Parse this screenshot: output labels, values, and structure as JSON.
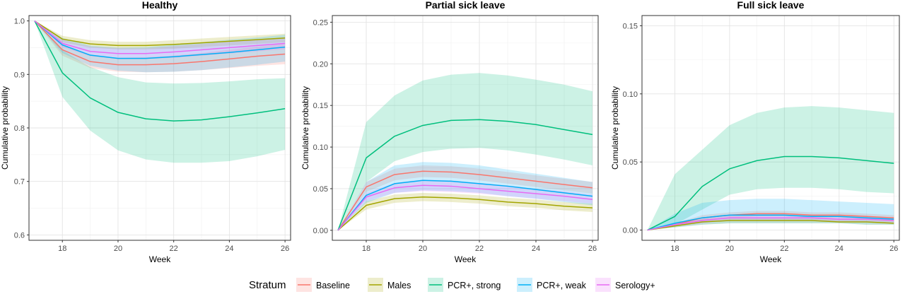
{
  "chart_data": {
    "type": "line",
    "legend": {
      "title": "Stratum",
      "position": "bottom",
      "entries": [
        "Baseline",
        "Males",
        "PCR+, strong",
        "PCR+, weak",
        "Serology+"
      ]
    },
    "colors": {
      "Baseline": "#F8766D",
      "Males": "#A3A500",
      "PCR+, strong": "#00BF7D",
      "PCR+, weak": "#00B0F6",
      "Serology+": "#E76BF3"
    },
    "grid": true,
    "panels": [
      {
        "title": "Healthy",
        "xlabel": "Week",
        "ylabel": "Cumulative probability",
        "xlim": [
          16.8,
          26.2
        ],
        "ylim": [
          0.59,
          1.01
        ],
        "xticks": [
          18,
          20,
          22,
          24,
          26
        ],
        "xtick_labels": [
          "18",
          "20",
          "22",
          "24",
          "26"
        ],
        "yticks": [
          0.6,
          0.7,
          0.8,
          0.9,
          1.0
        ],
        "ytick_labels": [
          "0.6",
          "0.7",
          "0.8",
          "0.9",
          "1.0"
        ],
        "x": [
          17,
          18,
          19,
          20,
          21,
          22,
          23,
          24,
          25,
          26
        ],
        "series": [
          {
            "name": "Baseline",
            "values": [
              1.0,
              0.946,
              0.924,
              0.918,
              0.918,
              0.92,
              0.924,
              0.929,
              0.934,
              0.938
            ],
            "lower": [
              1.0,
              0.935,
              0.912,
              0.905,
              0.904,
              0.905,
              0.908,
              0.912,
              0.916,
              0.919
            ],
            "upper": [
              1.0,
              0.957,
              0.936,
              0.931,
              0.932,
              0.935,
              0.94,
              0.946,
              0.952,
              0.957
            ]
          },
          {
            "name": "Males",
            "values": [
              1.0,
              0.966,
              0.957,
              0.954,
              0.954,
              0.956,
              0.959,
              0.962,
              0.965,
              0.968
            ],
            "lower": [
              1.0,
              0.96,
              0.95,
              0.947,
              0.947,
              0.948,
              0.951,
              0.954,
              0.957,
              0.96
            ],
            "upper": [
              1.0,
              0.972,
              0.964,
              0.961,
              0.961,
              0.964,
              0.967,
              0.97,
              0.973,
              0.976
            ]
          },
          {
            "name": "PCR+, strong",
            "values": [
              1.0,
              0.903,
              0.856,
              0.829,
              0.817,
              0.813,
              0.815,
              0.821,
              0.828,
              0.836
            ],
            "lower": [
              1.0,
              0.858,
              0.795,
              0.758,
              0.741,
              0.735,
              0.735,
              0.738,
              0.747,
              0.759
            ],
            "upper": [
              1.0,
              0.945,
              0.914,
              0.895,
              0.885,
              0.883,
              0.884,
              0.887,
              0.891,
              0.893
            ]
          },
          {
            "name": "PCR+, weak",
            "values": [
              1.0,
              0.955,
              0.936,
              0.93,
              0.93,
              0.933,
              0.937,
              0.941,
              0.946,
              0.951
            ],
            "lower": [
              1.0,
              0.94,
              0.916,
              0.907,
              0.904,
              0.905,
              0.908,
              0.913,
              0.918,
              0.924
            ],
            "upper": [
              1.0,
              0.968,
              0.954,
              0.95,
              0.951,
              0.955,
              0.96,
              0.965,
              0.969,
              0.974
            ]
          },
          {
            "name": "Serology+",
            "values": [
              1.0,
              0.958,
              0.943,
              0.939,
              0.939,
              0.942,
              0.946,
              0.95,
              0.954,
              0.958
            ],
            "lower": [
              1.0,
              0.951,
              0.934,
              0.929,
              0.929,
              0.931,
              0.935,
              0.939,
              0.943,
              0.947
            ],
            "upper": [
              1.0,
              0.965,
              0.952,
              0.949,
              0.949,
              0.953,
              0.957,
              0.961,
              0.965,
              0.969
            ]
          }
        ]
      },
      {
        "title": "Partial sick leave",
        "xlabel": "Week",
        "ylabel": "Cumulative probability",
        "xlim": [
          16.8,
          26.2
        ],
        "ylim": [
          -0.012,
          0.258
        ],
        "xticks": [
          18,
          20,
          22,
          24,
          26
        ],
        "xtick_labels": [
          "18",
          "20",
          "22",
          "24",
          "26"
        ],
        "yticks": [
          0,
          0.05,
          0.1,
          0.15,
          0.2,
          0.25
        ],
        "ytick_labels": [
          "0.00",
          "0.05",
          "0.10",
          "0.15",
          "0.20",
          "0.25"
        ],
        "x": [
          17,
          18,
          19,
          20,
          21,
          22,
          23,
          24,
          25,
          26
        ],
        "series": [
          {
            "name": "Baseline",
            "values": [
              0,
              0.052,
              0.067,
              0.071,
              0.07,
              0.067,
              0.063,
              0.059,
              0.055,
              0.051
            ],
            "lower": [
              0,
              0.046,
              0.06,
              0.064,
              0.063,
              0.06,
              0.056,
              0.052,
              0.048,
              0.044
            ],
            "upper": [
              0,
              0.058,
              0.074,
              0.078,
              0.077,
              0.074,
              0.07,
              0.066,
              0.062,
              0.058
            ]
          },
          {
            "name": "Males",
            "values": [
              0,
              0.03,
              0.038,
              0.04,
              0.039,
              0.037,
              0.034,
              0.032,
              0.029,
              0.027
            ],
            "lower": [
              0,
              0.025,
              0.033,
              0.035,
              0.034,
              0.032,
              0.029,
              0.027,
              0.024,
              0.022
            ],
            "upper": [
              0,
              0.035,
              0.043,
              0.045,
              0.044,
              0.042,
              0.039,
              0.037,
              0.034,
              0.032
            ]
          },
          {
            "name": "PCR+, strong",
            "values": [
              0,
              0.087,
              0.113,
              0.126,
              0.132,
              0.133,
              0.131,
              0.127,
              0.121,
              0.115
            ],
            "lower": [
              0,
              0.058,
              0.083,
              0.094,
              0.098,
              0.099,
              0.096,
              0.091,
              0.085,
              0.078
            ],
            "upper": [
              0,
              0.13,
              0.162,
              0.18,
              0.187,
              0.189,
              0.186,
              0.181,
              0.175,
              0.167
            ]
          },
          {
            "name": "PCR+, weak",
            "values": [
              0,
              0.042,
              0.056,
              0.06,
              0.059,
              0.056,
              0.053,
              0.049,
              0.045,
              0.041
            ],
            "lower": [
              0,
              0.033,
              0.045,
              0.048,
              0.047,
              0.045,
              0.041,
              0.038,
              0.034,
              0.03
            ],
            "upper": [
              0,
              0.058,
              0.078,
              0.082,
              0.081,
              0.078,
              0.073,
              0.068,
              0.063,
              0.058
            ]
          },
          {
            "name": "Serology+",
            "values": [
              0,
              0.04,
              0.051,
              0.054,
              0.053,
              0.05,
              0.047,
              0.044,
              0.041,
              0.037
            ],
            "lower": [
              0,
              0.035,
              0.045,
              0.047,
              0.046,
              0.044,
              0.041,
              0.038,
              0.035,
              0.032
            ],
            "upper": [
              0,
              0.045,
              0.057,
              0.061,
              0.06,
              0.057,
              0.054,
              0.05,
              0.047,
              0.043
            ]
          }
        ]
      },
      {
        "title": "Full sick leave",
        "xlabel": "Week",
        "ylabel": "Cumulative probability",
        "xlim": [
          16.8,
          26.2
        ],
        "ylim": [
          -0.0075,
          0.1575
        ],
        "xticks": [
          18,
          20,
          22,
          24,
          26
        ],
        "xtick_labels": [
          "18",
          "20",
          "22",
          "24",
          "26"
        ],
        "yticks": [
          0,
          0.05,
          0.1,
          0.15
        ],
        "ytick_labels": [
          "0.00",
          "0.05",
          "0.10",
          "0.15"
        ],
        "x": [
          17,
          18,
          19,
          20,
          21,
          22,
          23,
          24,
          25,
          26
        ],
        "series": [
          {
            "name": "Baseline",
            "values": [
              0,
              0.004,
              0.009,
              0.011,
              0.012,
              0.012,
              0.011,
              0.011,
              0.01,
              0.009
            ],
            "lower": [
              0,
              0.003,
              0.007,
              0.009,
              0.01,
              0.01,
              0.009,
              0.009,
              0.008,
              0.007
            ],
            "upper": [
              0,
              0.005,
              0.011,
              0.013,
              0.014,
              0.014,
              0.013,
              0.013,
              0.012,
              0.011
            ]
          },
          {
            "name": "Males",
            "values": [
              0,
              0.003,
              0.006,
              0.007,
              0.007,
              0.007,
              0.007,
              0.006,
              0.006,
              0.005
            ],
            "lower": [
              0,
              0.002,
              0.004,
              0.005,
              0.005,
              0.005,
              0.005,
              0.005,
              0.004,
              0.004
            ],
            "upper": [
              0,
              0.004,
              0.008,
              0.009,
              0.009,
              0.009,
              0.009,
              0.008,
              0.008,
              0.007
            ]
          },
          {
            "name": "PCR+, strong",
            "values": [
              0,
              0.01,
              0.032,
              0.045,
              0.051,
              0.054,
              0.054,
              0.053,
              0.051,
              0.049
            ],
            "lower": [
              0,
              0.004,
              0.015,
              0.026,
              0.03,
              0.031,
              0.031,
              0.03,
              0.028,
              0.027
            ],
            "upper": [
              0,
              0.041,
              0.059,
              0.077,
              0.086,
              0.09,
              0.091,
              0.09,
              0.088,
              0.086
            ]
          },
          {
            "name": "PCR+, weak",
            "values": [
              0,
              0.005,
              0.009,
              0.011,
              0.011,
              0.011,
              0.01,
              0.01,
              0.009,
              0.008
            ],
            "lower": [
              0,
              0.002,
              0.004,
              0.005,
              0.005,
              0.005,
              0.005,
              0.005,
              0.004,
              0.004
            ],
            "upper": [
              0,
              0.012,
              0.02,
              0.022,
              0.023,
              0.023,
              0.022,
              0.021,
              0.02,
              0.019
            ]
          },
          {
            "name": "Serology+",
            "values": [
              0,
              0.004,
              0.007,
              0.009,
              0.009,
              0.009,
              0.009,
              0.008,
              0.008,
              0.007
            ],
            "lower": [
              0,
              0.003,
              0.005,
              0.007,
              0.007,
              0.007,
              0.007,
              0.006,
              0.006,
              0.005
            ],
            "upper": [
              0,
              0.005,
              0.009,
              0.011,
              0.011,
              0.011,
              0.011,
              0.01,
              0.01,
              0.009
            ]
          }
        ]
      }
    ]
  }
}
